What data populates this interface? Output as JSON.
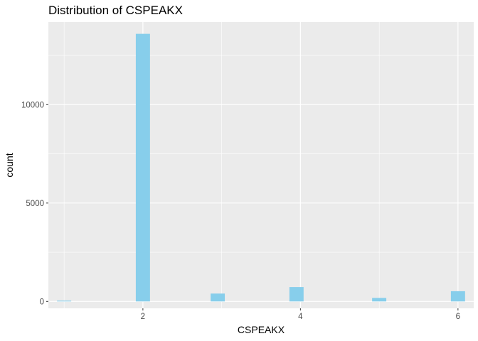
{
  "chart_data": {
    "type": "bar",
    "title": "Distribution of CSPEAKX",
    "xlabel": "CSPEAKX",
    "ylabel": "count",
    "xlim": [
      0.8,
      6.2
    ],
    "ylim": [
      -350,
      14200
    ],
    "x_ticks": [
      2,
      4,
      6
    ],
    "y_ticks": [
      0,
      5000,
      10000
    ],
    "grid": true,
    "legend": "none",
    "bar_color": "#87CEEB",
    "panel_color": "#EBEBEB",
    "grid_color": "#FFFFFF",
    "bin_width": 0.18,
    "bins": [
      {
        "x": 1.0,
        "value": 40
      },
      {
        "x": 2.0,
        "value": 13600
      },
      {
        "x": 2.95,
        "value": 400
      },
      {
        "x": 3.95,
        "value": 730
      },
      {
        "x": 5.0,
        "value": 180
      },
      {
        "x": 6.0,
        "value": 520
      }
    ]
  }
}
